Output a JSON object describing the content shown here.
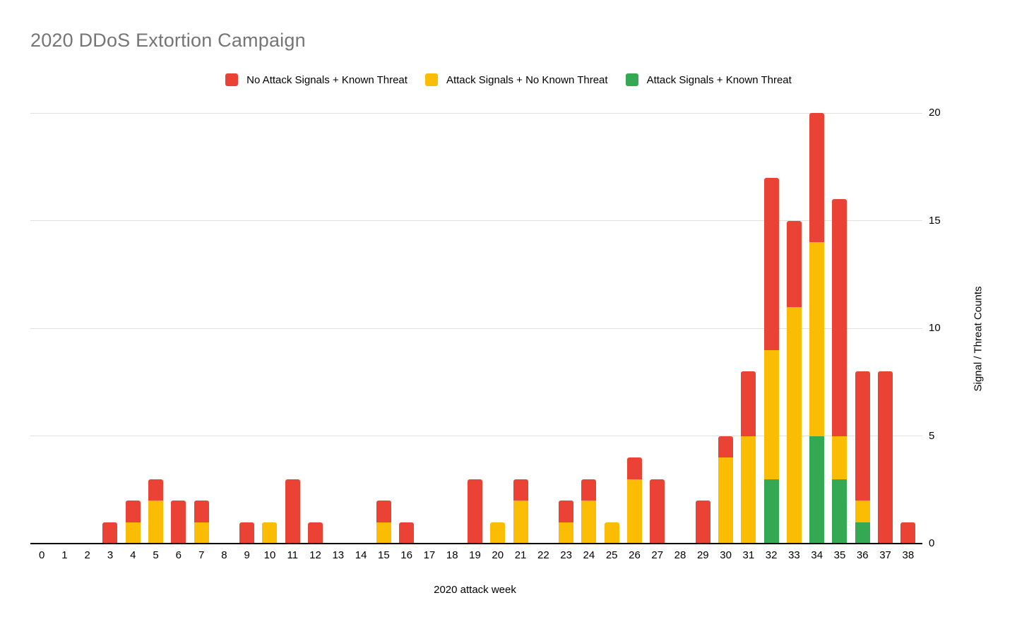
{
  "chart_data": {
    "type": "bar",
    "variant": "stacked",
    "title": "2020 DDoS Extortion Campaign",
    "xlabel": "2020 attack week",
    "ylabel": "Signal / Threat Counts",
    "ylim": [
      0,
      20
    ],
    "yticks": [
      0,
      5,
      10,
      15,
      20
    ],
    "grid": true,
    "legend_position": "top-center",
    "y_axis_side": "right",
    "categories": [
      "0",
      "1",
      "2",
      "3",
      "4",
      "5",
      "6",
      "7",
      "8",
      "9",
      "10",
      "11",
      "12",
      "13",
      "14",
      "15",
      "16",
      "17",
      "18",
      "19",
      "20",
      "21",
      "22",
      "23",
      "24",
      "25",
      "26",
      "27",
      "28",
      "29",
      "30",
      "31",
      "32",
      "33",
      "34",
      "35",
      "36",
      "37",
      "38"
    ],
    "stack_order_bottom_to_top": [
      "green",
      "yellow",
      "red"
    ],
    "series": [
      {
        "key": "red",
        "name": "No Attack Signals + Known Threat",
        "color": "#EA4335",
        "values": [
          0,
          0,
          0,
          1,
          1,
          1,
          2,
          1,
          0,
          1,
          0,
          3,
          1,
          0,
          0,
          1,
          1,
          0,
          0,
          3,
          0,
          1,
          0,
          1,
          1,
          0,
          1,
          3,
          0,
          2,
          1,
          3,
          8,
          4,
          6,
          11,
          6,
          8,
          1
        ]
      },
      {
        "key": "yellow",
        "name": "Attack Signals + No Known Threat",
        "color": "#FBBC04",
        "values": [
          0,
          0,
          0,
          0,
          1,
          2,
          0,
          1,
          0,
          0,
          1,
          0,
          0,
          0,
          0,
          1,
          0,
          0,
          0,
          0,
          1,
          2,
          0,
          1,
          2,
          1,
          3,
          0,
          0,
          0,
          4,
          5,
          6,
          11,
          9,
          2,
          1,
          0,
          0
        ]
      },
      {
        "key": "green",
        "name": "Attack Signals + Known Threat",
        "color": "#34A853",
        "values": [
          0,
          0,
          0,
          0,
          0,
          0,
          0,
          0,
          0,
          0,
          0,
          0,
          0,
          0,
          0,
          0,
          0,
          0,
          0,
          0,
          0,
          0,
          0,
          0,
          0,
          0,
          0,
          0,
          0,
          0,
          0,
          0,
          3,
          0,
          5,
          3,
          1,
          0,
          0
        ]
      }
    ],
    "colors": {
      "red": "#EA4335",
      "yellow": "#FBBC04",
      "green": "#34A853",
      "title_text": "#757575",
      "axis_text": "#000000",
      "gridline": "#e0e0e0",
      "baseline": "#000000",
      "background": "#ffffff"
    }
  }
}
